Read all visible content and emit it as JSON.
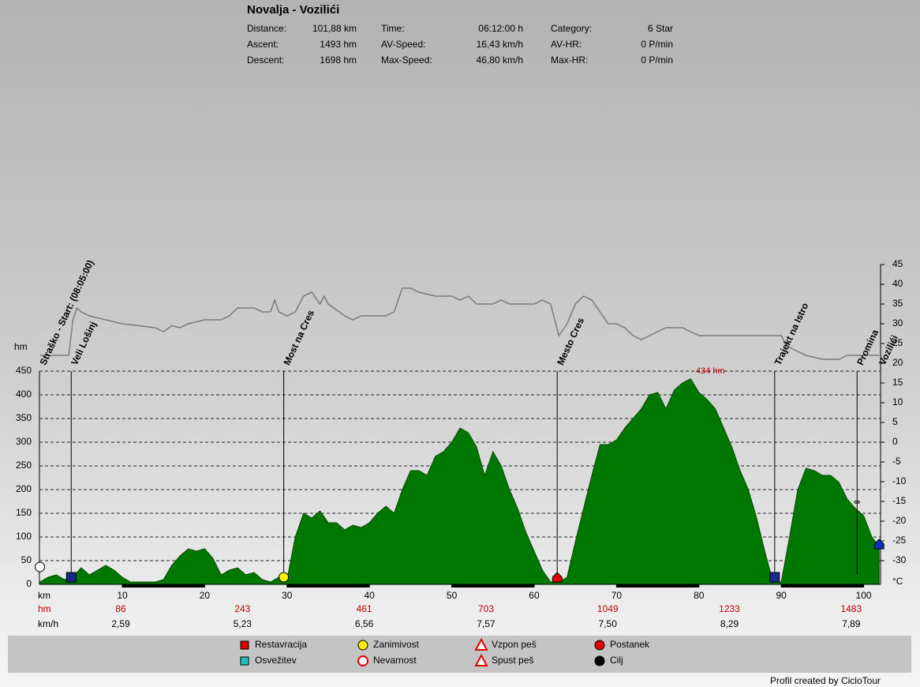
{
  "chart_data": {
    "type": "area",
    "title": "Novalja - Vozilići",
    "stats": [
      {
        "label": "Distance:",
        "value": "101,88 km"
      },
      {
        "label": "Ascent:",
        "value": "1493 hm"
      },
      {
        "label": "Descent:",
        "value": "1698 hm"
      },
      {
        "label": "Time:",
        "value": "06:12:00 h"
      },
      {
        "label": "AV-Speed:",
        "value": "16,43 km/h"
      },
      {
        "label": "Max-Speed:",
        "value": "46,80 km/h"
      },
      {
        "label": "Category:",
        "value": "6 Star"
      },
      {
        "label": "AV-HR:",
        "value": "0 P/min"
      },
      {
        "label": "Max-HR:",
        "value": "0 P/min"
      }
    ],
    "xlabel": "km",
    "ylabel": "hm",
    "y2label": "°C",
    "xlim": [
      0,
      101.88
    ],
    "ylim": [
      0,
      675
    ],
    "y2lim": [
      -36,
      45
    ],
    "xticks": [
      10,
      20,
      30,
      40,
      50,
      60,
      70,
      80,
      90,
      100
    ],
    "yticks": [
      0,
      50,
      100,
      150,
      200,
      250,
      300,
      350,
      400,
      450
    ],
    "y2ticks": [
      45,
      40,
      35,
      30,
      25,
      20,
      15,
      10,
      5,
      0,
      -5,
      -10,
      -15,
      -20,
      -25,
      -30
    ],
    "grid": true,
    "color": "#007800",
    "x": [
      0,
      1,
      2,
      3,
      4,
      5,
      6,
      7,
      8,
      9,
      10,
      11,
      12,
      13,
      14,
      15,
      16,
      17,
      18,
      19,
      20,
      21,
      22,
      23,
      24,
      25,
      26,
      27,
      28,
      29,
      30,
      31,
      32,
      33,
      34,
      35,
      36,
      37,
      38,
      39,
      40,
      41,
      42,
      43,
      44,
      45,
      46,
      47,
      48,
      49,
      50,
      51,
      52,
      53,
      54,
      55,
      56,
      57,
      58,
      59,
      60,
      61,
      62,
      63,
      64,
      65,
      66,
      67,
      68,
      69,
      70,
      71,
      72,
      73,
      74,
      75,
      76,
      77,
      78,
      79,
      80,
      81,
      82,
      83,
      84,
      85,
      86,
      87,
      88,
      89,
      90,
      91,
      92,
      93,
      94,
      95,
      96,
      97,
      98,
      99,
      100,
      101,
      101.88
    ],
    "values": [
      5,
      15,
      20,
      10,
      15,
      35,
      20,
      30,
      40,
      30,
      15,
      5,
      5,
      5,
      5,
      10,
      40,
      60,
      75,
      70,
      75,
      55,
      20,
      30,
      35,
      20,
      25,
      10,
      5,
      15,
      10,
      100,
      150,
      140,
      155,
      130,
      130,
      115,
      125,
      120,
      130,
      150,
      165,
      150,
      200,
      240,
      240,
      230,
      270,
      280,
      300,
      330,
      320,
      290,
      230,
      280,
      250,
      200,
      160,
      110,
      70,
      30,
      5,
      5,
      15,
      90,
      160,
      230,
      295,
      295,
      305,
      330,
      350,
      370,
      400,
      405,
      370,
      410,
      425,
      434,
      405,
      390,
      370,
      330,
      290,
      240,
      200,
      140,
      70,
      5,
      5,
      100,
      200,
      245,
      240,
      230,
      230,
      215,
      180,
      160,
      145,
      100,
      80
    ],
    "temperature": {
      "axis": "y2",
      "color": "#7a7a7a",
      "x": [
        0,
        3.5,
        4,
        4.5,
        5,
        6,
        8,
        10,
        14,
        15,
        16,
        17,
        18,
        20,
        22,
        23,
        24,
        26,
        27,
        28,
        28.5,
        29,
        30,
        31,
        32,
        33,
        34,
        34.5,
        35,
        37,
        38,
        39,
        42,
        43,
        44,
        45,
        46,
        48,
        50,
        51,
        52,
        53,
        55,
        56,
        57,
        60,
        61,
        62,
        63,
        64,
        65,
        66,
        67,
        68,
        69,
        70,
        71,
        72,
        73,
        74,
        75,
        76,
        78,
        79,
        80,
        90,
        90.5,
        91,
        92,
        93,
        95,
        97,
        98,
        101.88
      ],
      "values": [
        22,
        22,
        31,
        34,
        33,
        32,
        31,
        30,
        29,
        28,
        29.5,
        29,
        30,
        31,
        31,
        32,
        34,
        34,
        33,
        33,
        36,
        33,
        32,
        33,
        37,
        38,
        35,
        37,
        35,
        32,
        31,
        32,
        32,
        33,
        39,
        39,
        38,
        37,
        37,
        36,
        37,
        35,
        35,
        36,
        35,
        35,
        36,
        35,
        27,
        30,
        35,
        37,
        36,
        33,
        30,
        30,
        29,
        27,
        26,
        27,
        28,
        29,
        29,
        28,
        27,
        27,
        25,
        24,
        23,
        22,
        21,
        21,
        22,
        22
      ]
    },
    "annotation": {
      "text": "434 hm",
      "x": 79,
      "y": 434
    },
    "waypoints": [
      {
        "label": "Straško - Start: (08:05:00)",
        "km": 0
      },
      {
        "label": "Veli Lošinj",
        "km": 3.8
      },
      {
        "label": "Most na Cres",
        "km": 29.6
      },
      {
        "label": "Mesto Cres",
        "km": 62.8
      },
      {
        "label": "Trajekt na Istro",
        "km": 89.2
      },
      {
        "label": "Promina",
        "km": 99.2
      },
      {
        "label": "Vozilići",
        "km": 101.88
      }
    ],
    "hm_row": {
      "label": "hm",
      "values": [
        86,
        243,
        461,
        703,
        1049,
        1233,
        1483
      ]
    },
    "speed_row": {
      "label": "km/h",
      "values": [
        "2,59",
        "5,23",
        "6,56",
        "7,57",
        "7,50",
        "8,29",
        "7,89"
      ]
    },
    "legend": [
      "Restavracija",
      "Osvežitev",
      "Zanimivost",
      "Nevarnost",
      "Vzpon peš",
      "Spust peš",
      "Postanek",
      "Cilj"
    ],
    "footer": "Profil created by CicloTour"
  }
}
